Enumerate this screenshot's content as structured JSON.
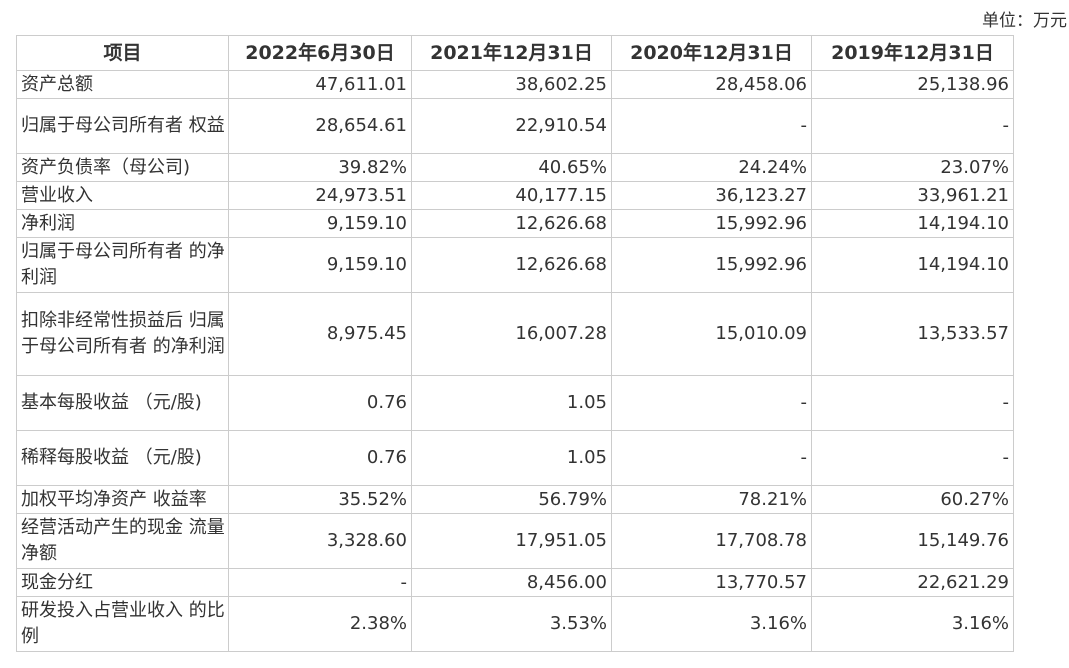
{
  "unit_label": "单位：万元",
  "table": {
    "headers": [
      "项目",
      "2022年6月30日",
      "2021年12月31日",
      "2020年12月31日",
      "2019年12月31日"
    ],
    "rows": [
      {
        "label": "资产总额",
        "values": [
          "47,611.01",
          "38,602.25",
          "28,458.06",
          "25,138.96"
        ],
        "lines": 1
      },
      {
        "label": "归属于母公司所有者 权益",
        "values": [
          "28,654.61",
          "22,910.54",
          "-",
          "-"
        ],
        "lines": 2
      },
      {
        "label": "资产负债率（母公司)",
        "values": [
          "39.82%",
          "40.65%",
          "24.24%",
          "23.07%"
        ],
        "lines": 1
      },
      {
        "label": "营业收入",
        "values": [
          "24,973.51",
          "40,177.15",
          "36,123.27",
          "33,961.21"
        ],
        "lines": 1
      },
      {
        "label": "净利润",
        "values": [
          "9,159.10",
          "12,626.68",
          "15,992.96",
          "14,194.10"
        ],
        "lines": 1
      },
      {
        "label": "归属于母公司所有者 的净利润",
        "values": [
          "9,159.10",
          "12,626.68",
          "15,992.96",
          "14,194.10"
        ],
        "lines": 2
      },
      {
        "label": "扣除非经常性损益后 归属于母公司所有者 的净利润",
        "values": [
          "8,975.45",
          "16,007.28",
          "15,010.09",
          "13,533.57"
        ],
        "lines": 3
      },
      {
        "label": "基本每股收益 （元/股)",
        "values": [
          "0.76",
          "1.05",
          "-",
          "-"
        ],
        "lines": 2
      },
      {
        "label": "稀释每股收益 （元/股)",
        "values": [
          "0.76",
          "1.05",
          "-",
          "-"
        ],
        "lines": 2
      },
      {
        "label": "加权平均净资产 收益率",
        "values": [
          "35.52%",
          "56.79%",
          "78.21%",
          "60.27%"
        ],
        "lines": 1
      },
      {
        "label": "经营活动产生的现金 流量净额",
        "values": [
          "3,328.60",
          "17,951.05",
          "17,708.78",
          "15,149.76"
        ],
        "lines": 2
      },
      {
        "label": "现金分红",
        "values": [
          "-",
          "8,456.00",
          "13,770.57",
          "22,621.29"
        ],
        "lines": 1
      },
      {
        "label": "研发投入占营业收入 的比例",
        "values": [
          "2.38%",
          "3.53%",
          "3.16%",
          "3.16%"
        ],
        "lines": 2
      }
    ]
  }
}
